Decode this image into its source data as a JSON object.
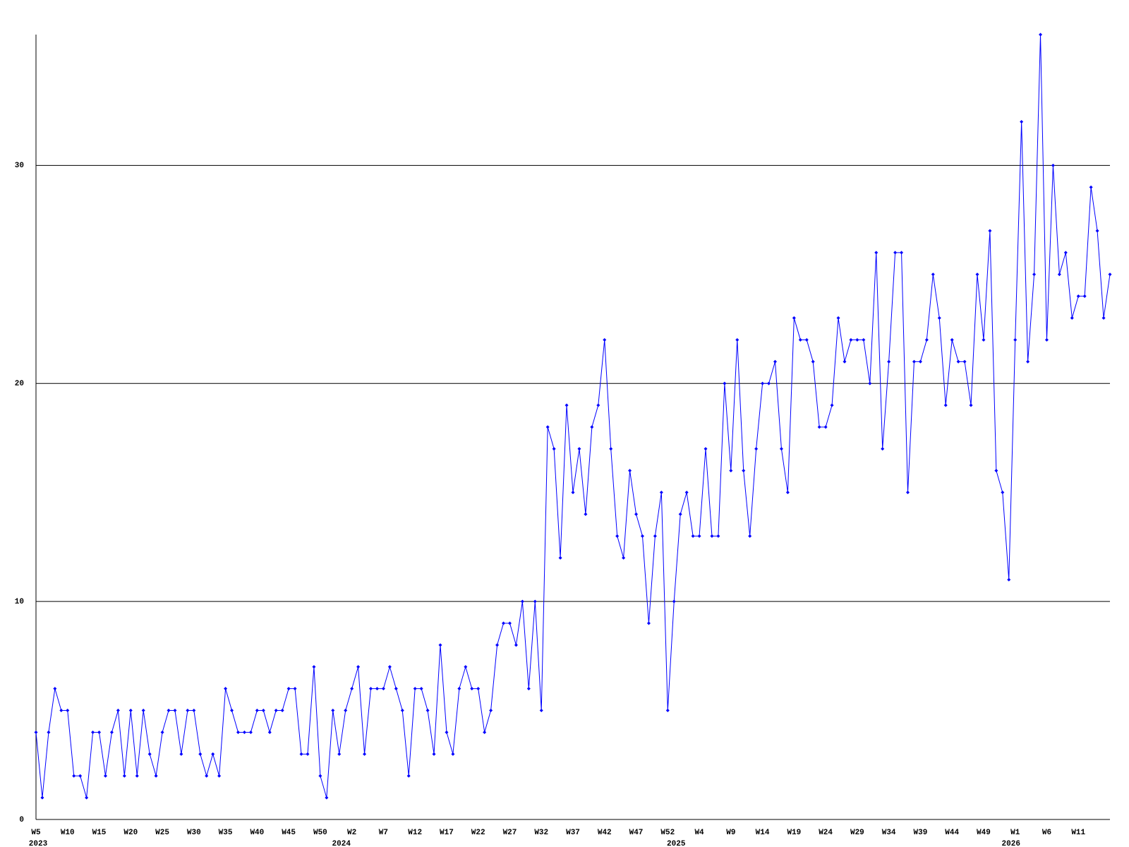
{
  "chart_data": {
    "type": "line",
    "color": "#0000ff",
    "grid": true,
    "ylim": [
      0,
      36
    ],
    "yticks": [
      0,
      10,
      20,
      30
    ],
    "categories": [
      "W5",
      null,
      null,
      null,
      null,
      "W10",
      null,
      null,
      null,
      null,
      "W15",
      null,
      null,
      null,
      null,
      "W20",
      null,
      null,
      null,
      null,
      "W25",
      null,
      null,
      null,
      null,
      "W30",
      null,
      null,
      null,
      null,
      "W35",
      null,
      null,
      null,
      null,
      "W40",
      null,
      null,
      null,
      null,
      "W45",
      null,
      null,
      null,
      null,
      "W50",
      null,
      null,
      null,
      null,
      "W2",
      null,
      null,
      null,
      null,
      "W7",
      null,
      null,
      null,
      null,
      "W12",
      null,
      null,
      null,
      null,
      "W17",
      null,
      null,
      null,
      null,
      "W22",
      null,
      null,
      null,
      null,
      "W27",
      null,
      null,
      null,
      null,
      "W32",
      null,
      null,
      null,
      null,
      "W37",
      null,
      null,
      null,
      null,
      "W42",
      null,
      null,
      null,
      null,
      "W47",
      null,
      null,
      null,
      null,
      "W52",
      null,
      null,
      null,
      null,
      "W4",
      null,
      null,
      null,
      null,
      "W9",
      null,
      null,
      null,
      null,
      "W14",
      null,
      null,
      null,
      null,
      "W19",
      null,
      null,
      null,
      null,
      "W24",
      null,
      null,
      null,
      null,
      "W29",
      null,
      null,
      null,
      null,
      "W34",
      null,
      null,
      null,
      null,
      "W39",
      null,
      null,
      null,
      null,
      "W44",
      null,
      null,
      null,
      null,
      "W49",
      null,
      null,
      null,
      null,
      "W1",
      null,
      null,
      null,
      null,
      "W6",
      null,
      null,
      null,
      null,
      "W11",
      null,
      null,
      null,
      null,
      null
    ],
    "years": [
      "2023",
      null,
      null,
      null,
      null,
      null,
      null,
      null,
      null,
      null,
      null,
      null,
      null,
      null,
      null,
      null,
      null,
      null,
      null,
      null,
      null,
      null,
      null,
      null,
      null,
      null,
      null,
      null,
      null,
      null,
      null,
      null,
      null,
      null,
      null,
      null,
      null,
      null,
      null,
      null,
      null,
      null,
      null,
      null,
      null,
      null,
      null,
      null,
      "2024",
      null,
      null,
      null,
      null,
      null,
      null,
      null,
      null,
      null,
      null,
      null,
      null,
      null,
      null,
      null,
      null,
      null,
      null,
      null,
      null,
      null,
      null,
      null,
      null,
      null,
      null,
      null,
      null,
      null,
      null,
      null,
      null,
      null,
      null,
      null,
      null,
      null,
      null,
      null,
      null,
      null,
      null,
      null,
      null,
      null,
      null,
      null,
      null,
      null,
      null,
      null,
      null,
      "2025",
      null,
      null,
      null,
      null,
      null,
      null,
      null,
      null,
      null,
      null,
      null,
      null,
      null,
      null,
      null,
      null,
      null,
      null,
      null,
      null,
      null,
      null,
      null,
      null,
      null,
      null,
      null,
      null,
      null,
      null,
      null,
      null,
      null,
      null,
      null,
      null,
      null,
      null,
      null,
      null,
      null,
      null,
      null,
      null,
      null,
      null,
      null,
      null,
      null,
      null,
      null,
      null,
      "2026",
      null,
      null,
      null,
      null,
      null,
      null,
      null,
      null,
      null,
      null,
      null,
      null,
      null,
      null,
      null,
      null
    ],
    "values": [
      4,
      1,
      4,
      6,
      5,
      5,
      2,
      2,
      1,
      4,
      4,
      2,
      4,
      5,
      2,
      5,
      2,
      5,
      3,
      2,
      4,
      5,
      5,
      3,
      5,
      5,
      3,
      2,
      3,
      2,
      6,
      5,
      4,
      4,
      4,
      5,
      5,
      4,
      5,
      5,
      6,
      6,
      3,
      3,
      7,
      2,
      1,
      5,
      3,
      5,
      6,
      7,
      3,
      6,
      6,
      6,
      7,
      6,
      5,
      2,
      6,
      6,
      5,
      3,
      8,
      4,
      3,
      6,
      7,
      6,
      6,
      4,
      5,
      8,
      9,
      9,
      8,
      10,
      6,
      10,
      5,
      18,
      17,
      12,
      19,
      15,
      17,
      14,
      18,
      19,
      22,
      17,
      13,
      12,
      16,
      14,
      13,
      9,
      13,
      15,
      5,
      10,
      14,
      15,
      13,
      13,
      17,
      13,
      13,
      20,
      16,
      22,
      16,
      13,
      17,
      20,
      20,
      21,
      17,
      15,
      23,
      22,
      22,
      21,
      18,
      18,
      19,
      23,
      21,
      22,
      22,
      22,
      20,
      26,
      17,
      21,
      26,
      26,
      15,
      21,
      21,
      22,
      25,
      23,
      19,
      22,
      21,
      21,
      19,
      25,
      22,
      27,
      16,
      15,
      11,
      22,
      32,
      21,
      25,
      36,
      22,
      30,
      25,
      26,
      23,
      24,
      24,
      29,
      27,
      23,
      25
    ]
  }
}
